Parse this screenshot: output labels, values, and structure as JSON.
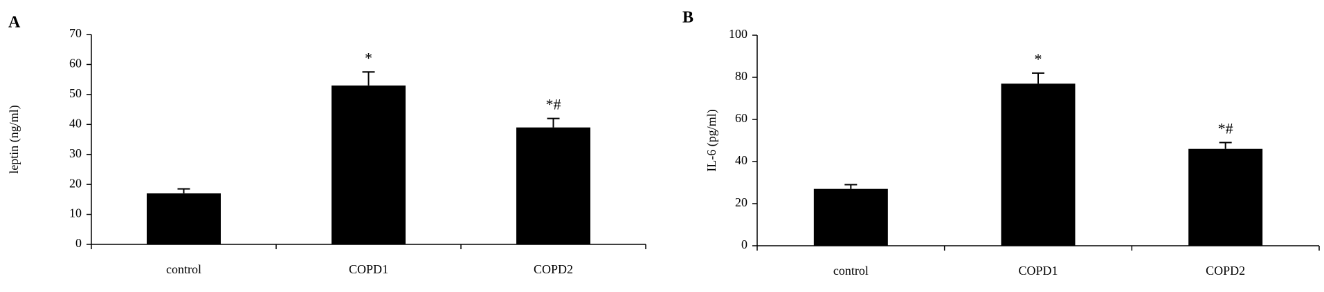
{
  "chart_data": [
    {
      "type": "bar",
      "panel": "A",
      "ylabel": "leptin (ng/ml)",
      "categories": [
        "control",
        "COPD1",
        "COPD2"
      ],
      "values": [
        17,
        53,
        39
      ],
      "errors": [
        1.5,
        4.5,
        3
      ],
      "annotations": [
        null,
        "*",
        "*#"
      ],
      "color": "#000000",
      "ylim": [
        0,
        70
      ],
      "yticks": [
        0,
        10,
        20,
        30,
        40,
        50,
        60,
        70
      ],
      "grid": false
    },
    {
      "type": "bar",
      "panel": "B",
      "ylabel": "IL-6 (pg/ml)",
      "categories": [
        "control",
        "COPD1",
        "COPD2"
      ],
      "values": [
        27,
        77,
        46
      ],
      "errors": [
        2,
        5,
        3
      ],
      "annotations": [
        null,
        "*",
        "*#"
      ],
      "color": "#000000",
      "ylim": [
        0,
        100
      ],
      "yticks": [
        0,
        20,
        40,
        60,
        80,
        100
      ],
      "grid": false
    }
  ]
}
